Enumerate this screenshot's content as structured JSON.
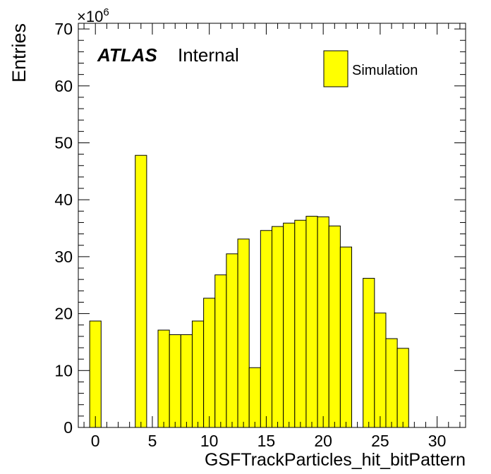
{
  "chart_data": {
    "type": "bar",
    "title": "",
    "xlabel": "GSFTrackParticles_hit_bitPattern",
    "ylabel": "Entries",
    "y_multiplier": "×10",
    "y_exponent": "6",
    "xlim": [
      -1.5,
      32.5
    ],
    "ylim": [
      0,
      71
    ],
    "bin_width": 1,
    "x_ticks": [
      0,
      5,
      10,
      15,
      20,
      25,
      30
    ],
    "y_ticks": [
      0,
      10,
      20,
      30,
      40,
      50,
      60,
      70
    ],
    "grid": false,
    "legend_position": "top-right",
    "fill_color": "#ffff00",
    "series": [
      {
        "name": "Simulation",
        "x": [
          0,
          4,
          6,
          7,
          8,
          9,
          10,
          11,
          12,
          13,
          14,
          15,
          16,
          17,
          18,
          19,
          20,
          21,
          22,
          24,
          25,
          26,
          27
        ],
        "values": [
          18.7,
          47.8,
          17.1,
          16.3,
          16.3,
          18.7,
          22.7,
          26.8,
          30.5,
          33.1,
          10.5,
          34.6,
          35.3,
          35.9,
          36.4,
          37.1,
          37.0,
          35.4,
          31.7,
          26.2,
          20.1,
          15.6,
          13.9
        ]
      }
    ]
  },
  "annotation": {
    "experiment": "ATLAS",
    "status": "Internal"
  }
}
